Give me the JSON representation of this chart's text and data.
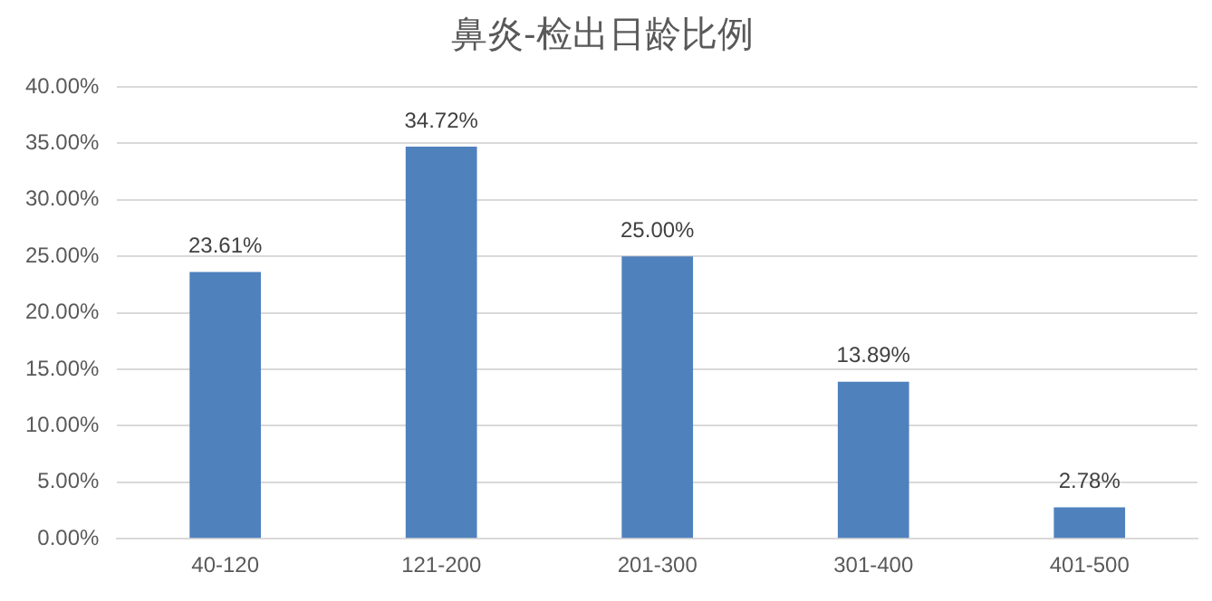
{
  "chart_data": {
    "type": "bar",
    "title": "鼻炎-检出日龄比例",
    "categories": [
      "40-120",
      "121-200",
      "201-300",
      "301-400",
      "401-500"
    ],
    "values": [
      23.61,
      34.72,
      25.0,
      13.89,
      2.78
    ],
    "value_labels": [
      "23.61%",
      "34.72%",
      "25.00%",
      "13.89%",
      "2.78%"
    ],
    "color": "#4f81bd",
    "ylim": [
      0,
      40
    ],
    "yticks": [
      {
        "value": 0,
        "label": "0.00%"
      },
      {
        "value": 5,
        "label": "5.00%"
      },
      {
        "value": 10,
        "label": "10.00%"
      },
      {
        "value": 15,
        "label": "15.00%"
      },
      {
        "value": 20,
        "label": "20.00%"
      },
      {
        "value": 25,
        "label": "25.00%"
      },
      {
        "value": 30,
        "label": "30.00%"
      },
      {
        "value": 35,
        "label": "35.00%"
      },
      {
        "value": 40,
        "label": "40.00%"
      }
    ],
    "grid": "y",
    "legend": false
  }
}
